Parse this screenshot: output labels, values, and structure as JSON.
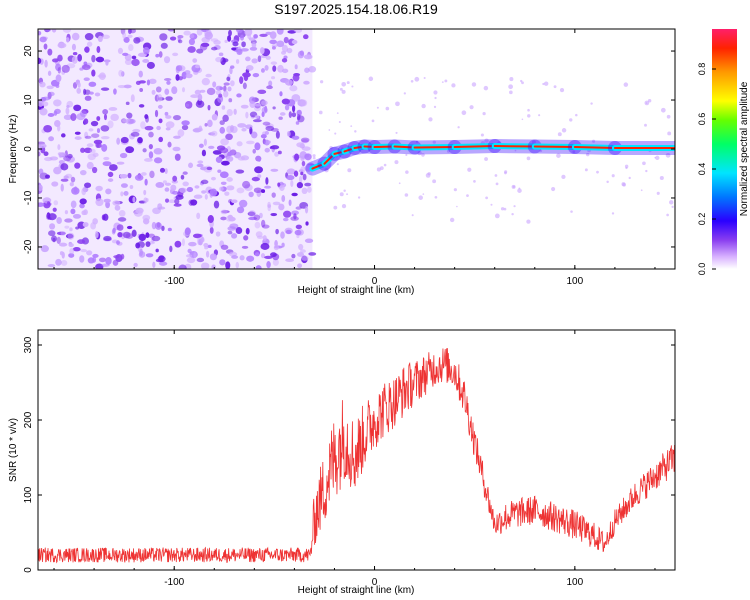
{
  "title": "S197.2025.154.18.06.R19",
  "colors": {
    "series_line": "#ee3333",
    "scatter_fill": "#8a3ff0",
    "axis": "#000000"
  },
  "chart_data": [
    {
      "type": "heatmap",
      "title": "S197.2025.154.18.06.R19",
      "xlabel": "Height of straight line (km)",
      "ylabel": "Frequency (Hz)",
      "xlim": [
        -168,
        150
      ],
      "ylim": [
        -24.5,
        24.5
      ],
      "xticks": [
        -100,
        0,
        100
      ],
      "yticks": [
        -20,
        -10,
        0,
        10,
        20
      ],
      "grid": false,
      "colorbar": {
        "label": "Normalized spectral amplitude",
        "range": [
          0,
          0.96
        ],
        "ticks": [
          0.0,
          0.2,
          0.4,
          0.6,
          0.8
        ],
        "colormap": "rainbow"
      },
      "noise_region_x": [
        -168,
        -31
      ],
      "signal_ridge": {
        "x": [
          -31,
          -25,
          -20,
          -15,
          -10,
          -5,
          0,
          10,
          20,
          40,
          60,
          80,
          100,
          120,
          150
        ],
        "freq": [
          -4,
          -3,
          -1,
          -0.5,
          0.2,
          0.5,
          0.4,
          0.5,
          0.3,
          0.4,
          0.6,
          0.5,
          0.4,
          0.2,
          0.2
        ]
      }
    },
    {
      "type": "line",
      "xlabel": "Height of straight line (km)",
      "ylabel": "SNR (10 * v/v)",
      "xlim": [
        -168,
        150
      ],
      "ylim": [
        0,
        320
      ],
      "xticks": [
        -100,
        0,
        100
      ],
      "yticks": [
        0,
        100,
        200,
        300
      ],
      "grid": false,
      "series": [
        {
          "x": [
            -168,
            -150,
            -120,
            -100,
            -80,
            -60,
            -40,
            -32,
            -30,
            -25,
            -20,
            -15,
            -10,
            -5,
            0,
            5,
            10,
            15,
            20,
            25,
            30,
            35,
            40,
            45,
            50,
            55,
            60,
            65,
            70,
            80,
            90,
            100,
            110,
            115,
            120,
            130,
            140,
            150
          ],
          "values": [
            20,
            20,
            20,
            20,
            20,
            20,
            20,
            20,
            70,
            110,
            150,
            180,
            150,
            180,
            200,
            215,
            225,
            240,
            250,
            260,
            270,
            275,
            265,
            230,
            170,
            115,
            60,
            70,
            75,
            80,
            70,
            60,
            45,
            35,
            65,
            100,
            125,
            150
          ],
          "noise": [
            10,
            10,
            10,
            10,
            10,
            10,
            10,
            10,
            40,
            50,
            60,
            60,
            50,
            45,
            40,
            38,
            35,
            35,
            30,
            28,
            25,
            25,
            25,
            25,
            22,
            20,
            16,
            20,
            20,
            20,
            20,
            20,
            18,
            16,
            16,
            18,
            20,
            22
          ]
        }
      ]
    }
  ]
}
